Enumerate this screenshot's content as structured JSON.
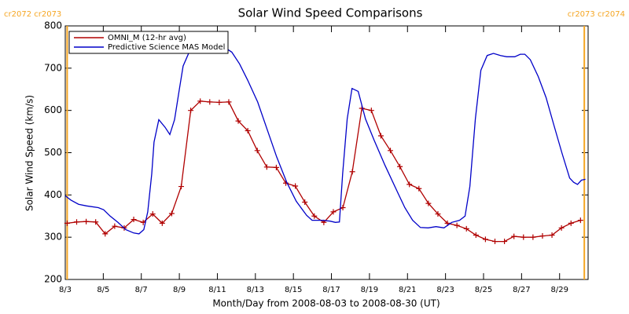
{
  "chart_data": {
    "type": "line",
    "title": "Solar Wind Speed Comparisons",
    "xlabel": "Month/Day from 2008-08-03 to 2008-08-30 (UT)",
    "ylabel": "Solar Wind Speed (km/s)",
    "xlim": [
      3,
      30.5
    ],
    "ylim": [
      200,
      800
    ],
    "yticks": [
      200,
      300,
      400,
      500,
      600,
      700,
      800
    ],
    "xticks": [
      {
        "value": 3,
        "label": "8/3"
      },
      {
        "value": 5,
        "label": "8/5"
      },
      {
        "value": 7,
        "label": "8/7"
      },
      {
        "value": 9,
        "label": "8/9"
      },
      {
        "value": 11,
        "label": "8/11"
      },
      {
        "value": 13,
        "label": "8/13"
      },
      {
        "value": 15,
        "label": "8/15"
      },
      {
        "value": 17,
        "label": "8/17"
      },
      {
        "value": 19,
        "label": "8/19"
      },
      {
        "value": 21,
        "label": "8/21"
      },
      {
        "value": 23,
        "label": "8/23"
      },
      {
        "value": 25,
        "label": "8/25"
      },
      {
        "value": 27,
        "label": "8/27"
      },
      {
        "value": 29,
        "label": "8/29"
      }
    ],
    "legend": "upper left",
    "boundaries": [
      {
        "x": 3.1,
        "label": "cr2072 cr2073",
        "color": "#f5a623"
      },
      {
        "x": 30.3,
        "label": "cr2073 cr2074",
        "color": "#f5a623"
      }
    ],
    "series": [
      {
        "name": "OMNI_M (12-hr avg)",
        "color": "#b00000",
        "markers": true,
        "x": [
          3.1,
          3.6,
          4.1,
          4.6,
          5.1,
          5.6,
          6.1,
          6.6,
          7.1,
          7.6,
          8.1,
          8.6,
          9.1,
          9.6,
          10.1,
          10.6,
          11.1,
          11.6,
          12.1,
          12.6,
          13.1,
          13.6,
          14.1,
          14.6,
          15.1,
          15.6,
          16.1,
          16.6,
          17.1,
          17.6,
          18.1,
          18.6,
          19.1,
          19.6,
          20.1,
          20.6,
          21.1,
          21.6,
          22.1,
          22.6,
          23.1,
          23.6,
          24.1,
          24.6,
          25.1,
          25.6,
          26.1,
          26.6,
          27.1,
          27.6,
          28.1,
          28.6,
          29.1,
          29.6,
          30.1
        ],
        "values": [
          333,
          336,
          337,
          336,
          308,
          326,
          322,
          342,
          335,
          355,
          333,
          356,
          420,
          600,
          622,
          620,
          619,
          620,
          575,
          552,
          505,
          466,
          465,
          428,
          421,
          383,
          350,
          335,
          360,
          370,
          455,
          605,
          600,
          540,
          505,
          467,
          425,
          415,
          380,
          355,
          333,
          328,
          320,
          305,
          295,
          290,
          290,
          302,
          300,
          300,
          303,
          305,
          322,
          333,
          340
        ]
      },
      {
        "name": "Predictive Science MAS Model",
        "color": "#0000c8",
        "markers": false,
        "x": [
          3.0,
          3.29,
          3.7,
          4.12,
          4.74,
          5.02,
          5.36,
          5.77,
          6.18,
          6.6,
          6.88,
          7.13,
          7.34,
          7.55,
          7.67,
          7.92,
          8.25,
          8.5,
          8.75,
          9.0,
          9.2,
          9.49,
          9.78,
          10.11,
          10.52,
          10.94,
          11.35,
          11.76,
          12.17,
          12.59,
          13.12,
          13.62,
          14.12,
          14.65,
          15.15,
          15.69,
          15.98,
          16.51,
          16.93,
          17.21,
          17.42,
          17.59,
          17.83,
          18.08,
          18.41,
          18.79,
          19.24,
          19.82,
          20.44,
          20.86,
          21.27,
          21.68,
          22.09,
          22.5,
          22.92,
          23.33,
          23.74,
          24.03,
          24.28,
          24.57,
          24.86,
          25.19,
          25.52,
          25.89,
          26.22,
          26.64,
          26.93,
          27.17,
          27.46,
          27.88,
          28.29,
          28.7,
          29.12,
          29.53,
          29.74,
          29.94,
          30.15,
          30.36
        ],
        "values": [
          398,
          388,
          378,
          374,
          370,
          365,
          350,
          335,
          318,
          310,
          308,
          318,
          360,
          450,
          525,
          578,
          560,
          543,
          578,
          650,
          705,
          735,
          752,
          752,
          752,
          752,
          750,
          738,
          710,
          672,
          620,
          555,
          490,
          430,
          385,
          352,
          340,
          340,
          338,
          335,
          336,
          450,
          580,
          652,
          645,
          580,
          530,
          470,
          410,
          370,
          340,
          323,
          322,
          325,
          322,
          335,
          340,
          350,
          420,
          580,
          695,
          730,
          735,
          730,
          727,
          727,
          733,
          733,
          720,
          680,
          630,
          565,
          500,
          440,
          430,
          425,
          435,
          437
        ]
      }
    ]
  }
}
